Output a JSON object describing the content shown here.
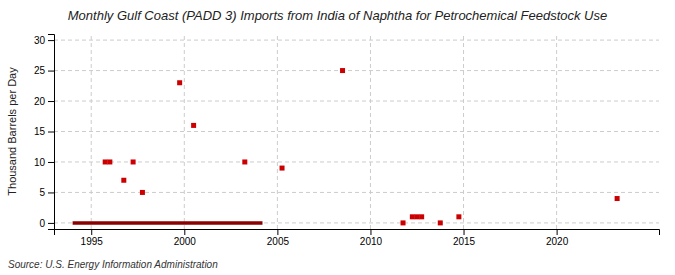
{
  "chart_data": {
    "type": "scatter",
    "title": "Monthly Gulf Coast (PADD 3) Imports from India of Naphtha for Petrochemical Feedstock Use",
    "y_label": "Thousand Barrels per Day",
    "annotation": "Source: U.S. Energy Information Administration",
    "xlim": [
      1993.0,
      2025.5
    ],
    "ylim": [
      -1,
      31
    ],
    "xticks": [
      1995,
      2000,
      2005,
      2010,
      2015,
      2020
    ],
    "yticks": [
      0,
      5,
      10,
      15,
      20,
      25,
      30
    ],
    "grid": true,
    "series": [
      {
        "type": "line",
        "color": "#8b0000",
        "x": [
          1994.0,
          2004.2
        ],
        "values": [
          0,
          0
        ]
      },
      {
        "type": "scatter",
        "color": "#cc0000",
        "marker": "square",
        "x": [
          1995.75,
          1996.0,
          1996.75,
          1997.25,
          1997.75,
          1999.75,
          2000.5,
          2003.25,
          2005.25,
          2008.5,
          2012.25,
          2012.5,
          2012.75,
          2014.75,
          2023.25
        ],
        "values": [
          10,
          10,
          7,
          10,
          5,
          23,
          16,
          10,
          9,
          25,
          1,
          1,
          1,
          1,
          4
        ]
      },
      {
        "type": "scatter",
        "color": "#cc0000",
        "marker": "square",
        "x": [
          2011.75,
          2013.75
        ],
        "values": [
          0,
          0
        ]
      }
    ]
  }
}
